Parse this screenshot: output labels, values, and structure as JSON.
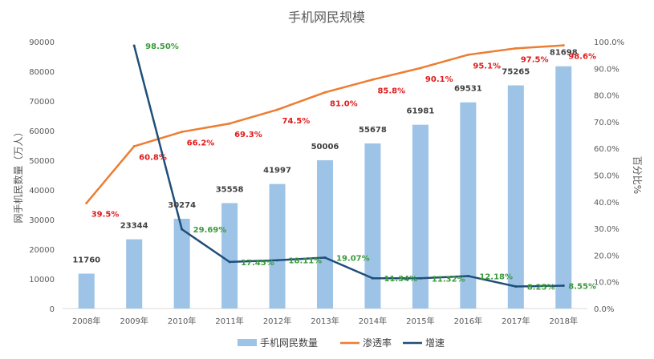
{
  "chart_data": {
    "type": "bar+line",
    "title": "手机网民规模",
    "categories": [
      "2008年",
      "2009年",
      "2010年",
      "2011年",
      "2012年",
      "2013年",
      "2014年",
      "2015年",
      "2016年",
      "2017年",
      "2018年"
    ],
    "series": [
      {
        "name": "手机网民数量",
        "type": "bar",
        "axis": "left",
        "color": "#9dc3e6",
        "values": [
          11760,
          23344,
          30274,
          35558,
          41997,
          50006,
          55678,
          61981,
          69531,
          75265,
          81698
        ],
        "labels": [
          "11760",
          "23344",
          "30274",
          "35558",
          "41997",
          "50006",
          "55678",
          "61981",
          "69531",
          "75265",
          "81698"
        ]
      },
      {
        "name": "渗透率",
        "type": "line",
        "axis": "right",
        "color": "#ed7d31",
        "values": [
          39.5,
          60.8,
          66.2,
          69.3,
          74.5,
          81.0,
          85.8,
          90.1,
          95.1,
          97.5,
          98.6
        ],
        "labels": [
          "39.5%",
          "60.8%",
          "66.2%",
          "69.3%",
          "74.5%",
          "81.0%",
          "85.8%",
          "90.1%",
          "95.1%",
          "97.5%",
          "98.6%"
        ]
      },
      {
        "name": "增速",
        "type": "line",
        "axis": "right",
        "color": "#1f4e79",
        "values": [
          null,
          98.5,
          29.69,
          17.45,
          18.11,
          19.07,
          11.34,
          11.32,
          12.18,
          8.25,
          8.55
        ],
        "labels": [
          "",
          "98.50%",
          "29.69%",
          "17.45%",
          "18.11%",
          "19.07%",
          "11.34%",
          "11.32%",
          "12.18%",
          "8.25%",
          "8.55%"
        ]
      }
    ],
    "y_left": {
      "label": "网手机民数量（万人）",
      "range": [
        0,
        90000
      ],
      "ticks": [
        "0",
        "10000",
        "20000",
        "30000",
        "40000",
        "50000",
        "60000",
        "70000",
        "80000",
        "90000"
      ]
    },
    "y_right": {
      "label": "百分比%",
      "range": [
        0,
        100
      ],
      "ticks": [
        "0.0%",
        "10.0%",
        "20.0%",
        "30.0%",
        "40.0%",
        "50.0%",
        "60.0%",
        "70.0%",
        "80.0%",
        "90.0%",
        "100.0%"
      ]
    },
    "grid": false,
    "legend": {
      "position": "bottom",
      "items": [
        "手机网民数量",
        "渗透率",
        "增速"
      ]
    }
  }
}
